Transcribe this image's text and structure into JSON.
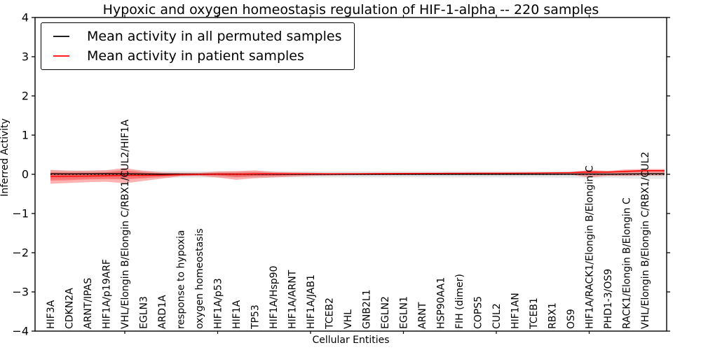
{
  "chart_data": {
    "type": "line",
    "title": "Hypoxic and oxygen homeostasis regulation of HIF-1-alpha -- 220 samples",
    "xlabel": "Cellular Entities",
    "ylabel": "Inferred Activity",
    "ylim": [
      -4,
      4
    ],
    "yticks": [
      -4,
      -3,
      -2,
      -1,
      0,
      1,
      2,
      3,
      4
    ],
    "grid": false,
    "legend_position": "upper left",
    "categories": [
      "HIF3A",
      "CDKN2A",
      "ARNT/IPAS",
      "HIF1A/p19ARF",
      "VHL/Elongin B/Elongin C/RBX1/CUL2/HIF1A",
      "EGLN3",
      "ARD1A",
      "response to hypoxia",
      "oxygen homeostasis",
      "HIF1A/p53",
      "HIF1A",
      "TP53",
      "HIF1A/Hsp90",
      "HIF1A/ARNT",
      "HIF1A/JAB1",
      "TCEB2",
      "VHL",
      "GNB2L1",
      "EGLN2",
      "EGLN1",
      "ARNT",
      "HSP90AA1",
      "FIH (dimer)",
      "COPS5",
      "CUL2",
      "HIF1AN",
      "TCEB1",
      "RBX1",
      "OS9",
      "HIF1A/RACK1/Elongin B/Elongin C",
      "PHD1-3/OS9",
      "RACK1/Elongin B/Elongin C",
      "VHL/Elongin B/Elongin C/RBX1/CUL2"
    ],
    "series": [
      {
        "name": "Mean activity in all permuted samples",
        "color": "#000000",
        "values": [
          0.012,
          0.01,
          0.012,
          0.014,
          0.012,
          0.008,
          0.004,
          0.002,
          0.002,
          0.004,
          0.002,
          0.004,
          0.003,
          0.002,
          0.001,
          0.001,
          0.001,
          0.001,
          0.001,
          0.001,
          0.001,
          0.001,
          0.001,
          0.001,
          0.001,
          0.001,
          0.002,
          0.002,
          0.003,
          0.006,
          0.004,
          0.008,
          0.012
        ]
      },
      {
        "name": "Mean activity in patient samples",
        "color": "#ff0000",
        "values": [
          -0.055,
          -0.05,
          -0.045,
          -0.038,
          -0.028,
          -0.028,
          -0.022,
          -0.01,
          -0.004,
          0.002,
          0.002,
          0.01,
          0.012,
          0.012,
          0.012,
          0.012,
          0.014,
          0.016,
          0.018,
          0.02,
          0.022,
          0.024,
          0.026,
          0.028,
          0.028,
          0.03,
          0.032,
          0.036,
          0.042,
          0.06,
          0.055,
          0.075,
          0.095
        ]
      }
    ],
    "bands": [
      {
        "name": "permuted-samples-range-outer",
        "color": "#000000",
        "opacity": 0.09,
        "hi": [
          0.115,
          0.105,
          0.1,
          0.1,
          0.1,
          0.095,
          0.09,
          0.085,
          0.08,
          0.08,
          0.08,
          0.08,
          0.08,
          0.08,
          0.08,
          0.08,
          0.08,
          0.08,
          0.08,
          0.08,
          0.08,
          0.08,
          0.08,
          0.08,
          0.08,
          0.08,
          0.08,
          0.08,
          0.085,
          0.09,
          0.085,
          0.09,
          0.09
        ],
        "lo": [
          -0.125,
          -0.115,
          -0.105,
          -0.1,
          -0.1,
          -0.095,
          -0.09,
          -0.085,
          -0.085,
          -0.085,
          -0.085,
          -0.085,
          -0.08,
          -0.08,
          -0.08,
          -0.08,
          -0.08,
          -0.08,
          -0.08,
          -0.08,
          -0.08,
          -0.08,
          -0.08,
          -0.08,
          -0.08,
          -0.08,
          -0.08,
          -0.085,
          -0.09,
          -0.105,
          -0.09,
          -0.11,
          -0.12
        ]
      },
      {
        "name": "permuted-samples-range-inner",
        "color": "#000000",
        "opacity": 0.08,
        "hi": [
          0.05,
          0.05,
          0.045,
          0.045,
          0.045,
          0.045,
          0.04,
          0.04,
          0.04,
          0.04,
          0.04,
          0.04,
          0.04,
          0.04,
          0.04,
          0.04,
          0.04,
          0.04,
          0.04,
          0.04,
          0.04,
          0.04,
          0.04,
          0.04,
          0.04,
          0.04,
          0.04,
          0.04,
          0.04,
          0.045,
          0.04,
          0.045,
          0.045
        ],
        "lo": [
          -0.05,
          -0.05,
          -0.045,
          -0.045,
          -0.045,
          -0.045,
          -0.04,
          -0.04,
          -0.04,
          -0.04,
          -0.04,
          -0.04,
          -0.04,
          -0.04,
          -0.04,
          -0.04,
          -0.04,
          -0.04,
          -0.04,
          -0.04,
          -0.04,
          -0.04,
          -0.04,
          -0.04,
          -0.04,
          -0.04,
          -0.04,
          -0.04,
          -0.04,
          -0.045,
          -0.04,
          -0.045,
          -0.045
        ]
      },
      {
        "name": "patient-samples-range-outer",
        "color": "#ff0000",
        "opacity": 0.3,
        "hi": [
          0.11,
          0.09,
          0.09,
          0.105,
          0.16,
          0.09,
          0.05,
          0.04,
          0.04,
          0.07,
          0.08,
          0.1,
          0.06,
          0.05,
          0.04,
          0.03,
          0.03,
          0.03,
          0.035,
          0.035,
          0.04,
          0.04,
          0.04,
          0.04,
          0.04,
          0.04,
          0.045,
          0.05,
          0.06,
          0.11,
          0.09,
          0.125,
          0.135
        ],
        "lo": [
          -0.24,
          -0.22,
          -0.2,
          -0.19,
          -0.23,
          -0.17,
          -0.11,
          -0.05,
          -0.04,
          -0.08,
          -0.14,
          -0.1,
          -0.08,
          -0.06,
          -0.04,
          -0.03,
          -0.02,
          -0.02,
          -0.015,
          -0.015,
          -0.01,
          -0.01,
          -0.01,
          -0.01,
          -0.01,
          -0.01,
          -0.01,
          -0.005,
          -0.005,
          -0.08,
          -0.04,
          -0.04,
          -0.03
        ]
      },
      {
        "name": "patient-samples-range-inner",
        "color": "#ff0000",
        "opacity": 0.3,
        "hi": [
          0.045,
          0.04,
          0.04,
          0.05,
          0.1,
          0.05,
          0.02,
          0.015,
          0.015,
          0.035,
          0.04,
          0.05,
          0.03,
          0.025,
          0.022,
          0.02,
          0.02,
          0.02,
          0.025,
          0.027,
          0.03,
          0.03,
          0.032,
          0.033,
          0.033,
          0.035,
          0.037,
          0.04,
          0.05,
          0.085,
          0.07,
          0.1,
          0.11
        ],
        "lo": [
          -0.16,
          -0.15,
          -0.13,
          -0.12,
          -0.13,
          -0.1,
          -0.06,
          -0.03,
          -0.02,
          -0.03,
          -0.07,
          -0.05,
          -0.04,
          -0.02,
          -0.01,
          -0.005,
          0.0,
          0.0,
          0.005,
          0.008,
          0.01,
          0.012,
          0.014,
          0.016,
          0.018,
          0.02,
          0.022,
          0.025,
          0.03,
          0.02,
          0.035,
          0.045,
          0.06
        ]
      }
    ],
    "zero_line": {
      "y": 0,
      "style": "dotted",
      "color": "#000000"
    }
  }
}
